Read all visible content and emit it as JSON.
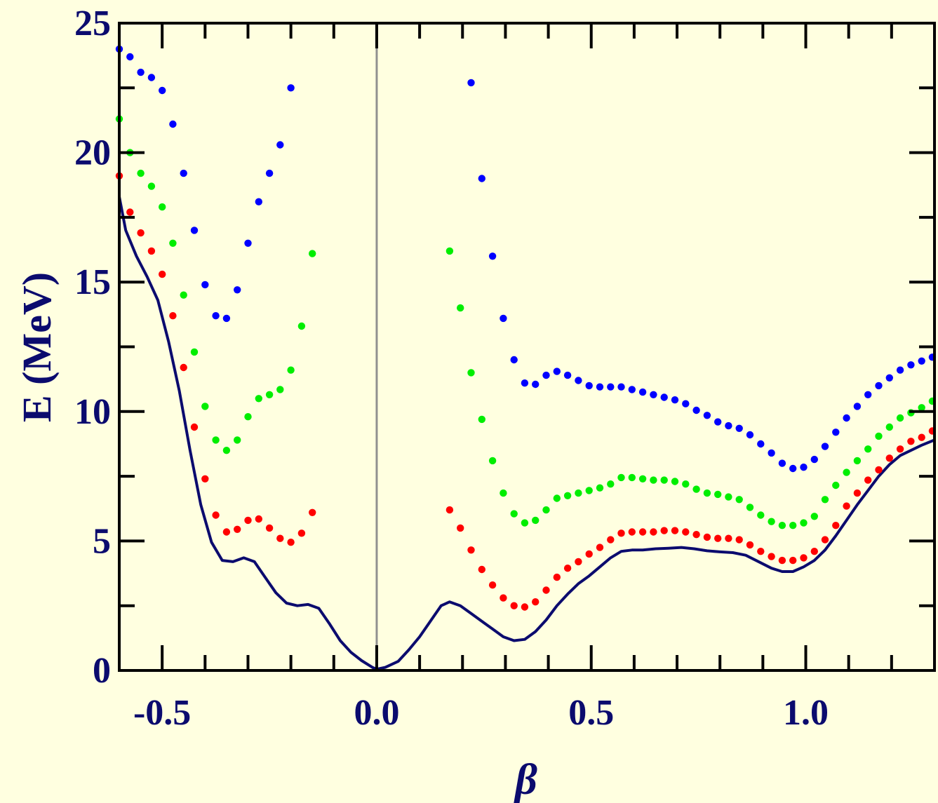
{
  "chart_data": {
    "type": "scatter",
    "title": "",
    "xlabel": "β",
    "ylabel": "E (MeV)",
    "xlim": [
      -0.6,
      1.3
    ],
    "ylim": [
      0,
      25
    ],
    "x_ticks": [
      "-0.5",
      "0.0",
      "0.5",
      "1.0"
    ],
    "x_tick_values": [
      -0.5,
      0.0,
      0.5,
      1.0
    ],
    "y_ticks": [
      "0",
      "5",
      "10",
      "15",
      "20",
      "25"
    ],
    "y_tick_values": [
      0,
      5,
      10,
      15,
      20,
      25
    ],
    "reference_line_x": 0.0,
    "grid": false,
    "colors": {
      "background": "#ffffe0",
      "axes": "#000000",
      "text": "#0b0b6e",
      "curve": "#0b0b6e",
      "reference_line": "#909090",
      "red": "#ff0000",
      "green": "#00ee00",
      "blue": "#0000ff"
    },
    "series": [
      {
        "type": "line",
        "color": "#0b0b6e",
        "points": [
          [
            -0.6,
            18.3
          ],
          [
            -0.585,
            17.0
          ],
          [
            -0.56,
            16.0
          ],
          [
            -0.535,
            15.2
          ],
          [
            -0.51,
            14.3
          ],
          [
            -0.485,
            12.7
          ],
          [
            -0.46,
            10.8
          ],
          [
            -0.435,
            8.5
          ],
          [
            -0.41,
            6.4
          ],
          [
            -0.385,
            4.95
          ],
          [
            -0.36,
            4.25
          ],
          [
            -0.335,
            4.2
          ],
          [
            -0.31,
            4.35
          ],
          [
            -0.285,
            4.2
          ],
          [
            -0.26,
            3.6
          ],
          [
            -0.235,
            3.0
          ],
          [
            -0.21,
            2.6
          ],
          [
            -0.185,
            2.5
          ],
          [
            -0.16,
            2.55
          ],
          [
            -0.135,
            2.4
          ],
          [
            -0.11,
            1.8
          ],
          [
            -0.085,
            1.15
          ],
          [
            -0.06,
            0.7
          ],
          [
            -0.035,
            0.38
          ],
          [
            -0.01,
            0.12
          ],
          [
            0.0,
            0.05
          ],
          [
            0.02,
            0.12
          ],
          [
            0.05,
            0.35
          ],
          [
            0.075,
            0.8
          ],
          [
            0.1,
            1.3
          ],
          [
            0.125,
            1.9
          ],
          [
            0.15,
            2.5
          ],
          [
            0.17,
            2.65
          ],
          [
            0.195,
            2.5
          ],
          [
            0.22,
            2.2
          ],
          [
            0.245,
            1.9
          ],
          [
            0.27,
            1.6
          ],
          [
            0.295,
            1.3
          ],
          [
            0.32,
            1.15
          ],
          [
            0.345,
            1.2
          ],
          [
            0.37,
            1.5
          ],
          [
            0.395,
            1.95
          ],
          [
            0.42,
            2.5
          ],
          [
            0.445,
            2.95
          ],
          [
            0.47,
            3.35
          ],
          [
            0.495,
            3.65
          ],
          [
            0.52,
            4.0
          ],
          [
            0.545,
            4.35
          ],
          [
            0.57,
            4.6
          ],
          [
            0.595,
            4.65
          ],
          [
            0.62,
            4.65
          ],
          [
            0.65,
            4.7
          ],
          [
            0.68,
            4.72
          ],
          [
            0.71,
            4.75
          ],
          [
            0.74,
            4.7
          ],
          [
            0.77,
            4.62
          ],
          [
            0.8,
            4.58
          ],
          [
            0.83,
            4.55
          ],
          [
            0.86,
            4.45
          ],
          [
            0.89,
            4.2
          ],
          [
            0.92,
            3.95
          ],
          [
            0.945,
            3.82
          ],
          [
            0.97,
            3.82
          ],
          [
            0.995,
            4.0
          ],
          [
            1.02,
            4.25
          ],
          [
            1.045,
            4.65
          ],
          [
            1.07,
            5.2
          ],
          [
            1.095,
            5.8
          ],
          [
            1.12,
            6.4
          ],
          [
            1.145,
            6.95
          ],
          [
            1.17,
            7.5
          ],
          [
            1.195,
            7.95
          ],
          [
            1.22,
            8.3
          ],
          [
            1.245,
            8.5
          ],
          [
            1.27,
            8.7
          ],
          [
            1.3,
            8.9
          ]
        ]
      },
      {
        "type": "scatter",
        "color": "#ff0000",
        "points": [
          [
            -0.6,
            19.1
          ],
          [
            -0.575,
            17.7
          ],
          [
            -0.55,
            16.9
          ],
          [
            -0.525,
            16.2
          ],
          [
            -0.5,
            15.3
          ],
          [
            -0.475,
            13.7
          ],
          [
            -0.45,
            11.7
          ],
          [
            -0.425,
            9.4
          ],
          [
            -0.4,
            7.4
          ],
          [
            -0.375,
            6.0
          ],
          [
            -0.35,
            5.35
          ],
          [
            -0.325,
            5.45
          ],
          [
            -0.3,
            5.8
          ],
          [
            -0.275,
            5.85
          ],
          [
            -0.25,
            5.5
          ],
          [
            -0.225,
            5.1
          ],
          [
            -0.2,
            4.95
          ],
          [
            -0.175,
            5.3
          ],
          [
            -0.15,
            6.1
          ],
          [
            0.17,
            6.2
          ],
          [
            0.195,
            5.5
          ],
          [
            0.22,
            4.65
          ],
          [
            0.245,
            3.9
          ],
          [
            0.27,
            3.3
          ],
          [
            0.295,
            2.8
          ],
          [
            0.32,
            2.5
          ],
          [
            0.345,
            2.45
          ],
          [
            0.37,
            2.65
          ],
          [
            0.395,
            3.1
          ],
          [
            0.42,
            3.6
          ],
          [
            0.445,
            3.95
          ],
          [
            0.47,
            4.2
          ],
          [
            0.495,
            4.5
          ],
          [
            0.52,
            4.75
          ],
          [
            0.545,
            5.05
          ],
          [
            0.57,
            5.3
          ],
          [
            0.595,
            5.35
          ],
          [
            0.62,
            5.35
          ],
          [
            0.645,
            5.35
          ],
          [
            0.67,
            5.4
          ],
          [
            0.695,
            5.4
          ],
          [
            0.72,
            5.35
          ],
          [
            0.745,
            5.25
          ],
          [
            0.77,
            5.15
          ],
          [
            0.795,
            5.1
          ],
          [
            0.82,
            5.1
          ],
          [
            0.845,
            5.05
          ],
          [
            0.87,
            4.85
          ],
          [
            0.895,
            4.6
          ],
          [
            0.92,
            4.4
          ],
          [
            0.945,
            4.25
          ],
          [
            0.97,
            4.25
          ],
          [
            0.995,
            4.35
          ],
          [
            1.02,
            4.6
          ],
          [
            1.045,
            5.05
          ],
          [
            1.07,
            5.6
          ],
          [
            1.095,
            6.35
          ],
          [
            1.12,
            6.85
          ],
          [
            1.145,
            7.35
          ],
          [
            1.17,
            7.75
          ],
          [
            1.195,
            8.2
          ],
          [
            1.22,
            8.55
          ],
          [
            1.245,
            8.85
          ],
          [
            1.27,
            9.0
          ],
          [
            1.295,
            9.25
          ]
        ]
      },
      {
        "type": "scatter",
        "color": "#00ee00",
        "points": [
          [
            -0.6,
            21.3
          ],
          [
            -0.575,
            20.0
          ],
          [
            -0.55,
            19.2
          ],
          [
            -0.525,
            18.7
          ],
          [
            -0.5,
            17.9
          ],
          [
            -0.475,
            16.5
          ],
          [
            -0.45,
            14.5
          ],
          [
            -0.425,
            12.3
          ],
          [
            -0.4,
            10.2
          ],
          [
            -0.375,
            8.9
          ],
          [
            -0.35,
            8.5
          ],
          [
            -0.325,
            8.9
          ],
          [
            -0.3,
            9.8
          ],
          [
            -0.275,
            10.5
          ],
          [
            -0.25,
            10.65
          ],
          [
            -0.225,
            10.85
          ],
          [
            -0.2,
            11.6
          ],
          [
            -0.175,
            13.3
          ],
          [
            -0.15,
            16.1
          ],
          [
            0.17,
            16.2
          ],
          [
            0.195,
            14.0
          ],
          [
            0.22,
            11.5
          ],
          [
            0.245,
            9.7
          ],
          [
            0.27,
            8.1
          ],
          [
            0.295,
            6.85
          ],
          [
            0.32,
            6.05
          ],
          [
            0.345,
            5.7
          ],
          [
            0.37,
            5.8
          ],
          [
            0.395,
            6.2
          ],
          [
            0.42,
            6.65
          ],
          [
            0.445,
            6.75
          ],
          [
            0.47,
            6.85
          ],
          [
            0.495,
            6.95
          ],
          [
            0.52,
            7.05
          ],
          [
            0.545,
            7.2
          ],
          [
            0.57,
            7.45
          ],
          [
            0.595,
            7.45
          ],
          [
            0.62,
            7.4
          ],
          [
            0.645,
            7.35
          ],
          [
            0.67,
            7.35
          ],
          [
            0.695,
            7.3
          ],
          [
            0.72,
            7.2
          ],
          [
            0.745,
            7.0
          ],
          [
            0.77,
            6.85
          ],
          [
            0.795,
            6.8
          ],
          [
            0.82,
            6.7
          ],
          [
            0.845,
            6.6
          ],
          [
            0.87,
            6.3
          ],
          [
            0.895,
            6.0
          ],
          [
            0.92,
            5.75
          ],
          [
            0.945,
            5.6
          ],
          [
            0.97,
            5.6
          ],
          [
            0.995,
            5.7
          ],
          [
            1.02,
            5.95
          ],
          [
            1.045,
            6.6
          ],
          [
            1.07,
            7.15
          ],
          [
            1.095,
            7.65
          ],
          [
            1.12,
            8.1
          ],
          [
            1.145,
            8.55
          ],
          [
            1.17,
            9.05
          ],
          [
            1.195,
            9.4
          ],
          [
            1.22,
            9.75
          ],
          [
            1.245,
            9.95
          ],
          [
            1.27,
            10.15
          ],
          [
            1.295,
            10.4
          ]
        ]
      },
      {
        "type": "scatter",
        "color": "#0000ff",
        "points": [
          [
            -0.6,
            24.0
          ],
          [
            -0.575,
            23.7
          ],
          [
            -0.55,
            23.1
          ],
          [
            -0.525,
            22.9
          ],
          [
            -0.5,
            22.4
          ],
          [
            -0.475,
            21.1
          ],
          [
            -0.45,
            19.2
          ],
          [
            -0.425,
            17.0
          ],
          [
            -0.4,
            14.9
          ],
          [
            -0.375,
            13.7
          ],
          [
            -0.35,
            13.6
          ],
          [
            -0.325,
            14.7
          ],
          [
            -0.3,
            16.5
          ],
          [
            -0.275,
            18.1
          ],
          [
            -0.25,
            19.2
          ],
          [
            -0.225,
            20.3
          ],
          [
            -0.2,
            22.5
          ],
          [
            0.22,
            22.7
          ],
          [
            0.245,
            19.0
          ],
          [
            0.27,
            16.0
          ],
          [
            0.295,
            13.6
          ],
          [
            0.32,
            12.0
          ],
          [
            0.345,
            11.1
          ],
          [
            0.37,
            11.05
          ],
          [
            0.395,
            11.4
          ],
          [
            0.42,
            11.55
          ],
          [
            0.445,
            11.4
          ],
          [
            0.47,
            11.2
          ],
          [
            0.495,
            11.0
          ],
          [
            0.52,
            10.95
          ],
          [
            0.545,
            10.95
          ],
          [
            0.57,
            10.95
          ],
          [
            0.595,
            10.85
          ],
          [
            0.62,
            10.75
          ],
          [
            0.645,
            10.65
          ],
          [
            0.67,
            10.55
          ],
          [
            0.695,
            10.45
          ],
          [
            0.72,
            10.3
          ],
          [
            0.745,
            10.05
          ],
          [
            0.77,
            9.85
          ],
          [
            0.795,
            9.6
          ],
          [
            0.82,
            9.45
          ],
          [
            0.845,
            9.35
          ],
          [
            0.87,
            9.1
          ],
          [
            0.895,
            8.75
          ],
          [
            0.92,
            8.4
          ],
          [
            0.945,
            8.0
          ],
          [
            0.97,
            7.8
          ],
          [
            0.995,
            7.85
          ],
          [
            1.02,
            8.15
          ],
          [
            1.045,
            8.65
          ],
          [
            1.07,
            9.2
          ],
          [
            1.095,
            9.75
          ],
          [
            1.12,
            10.2
          ],
          [
            1.145,
            10.65
          ],
          [
            1.17,
            11.0
          ],
          [
            1.195,
            11.3
          ],
          [
            1.22,
            11.6
          ],
          [
            1.245,
            11.8
          ],
          [
            1.27,
            11.95
          ],
          [
            1.295,
            12.1
          ]
        ]
      }
    ]
  }
}
